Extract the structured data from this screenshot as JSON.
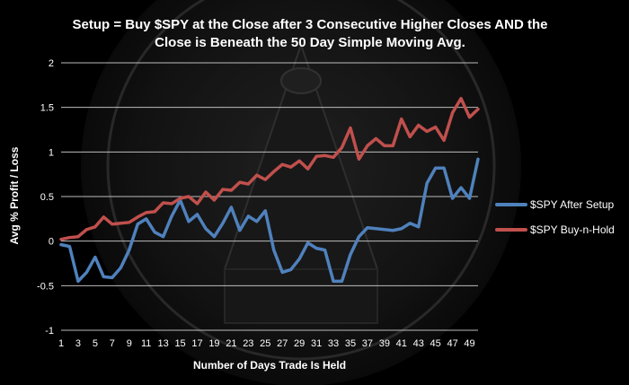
{
  "chart_data": {
    "type": "line",
    "title_line1": "Setup = Buy $SPY at the Close after 3 Consecutive Higher Closes AND the",
    "title_line2": "Close is Beneath the 50 Day Simple Moving Avg.",
    "xlabel": "Number of Days Trade Is Held",
    "ylabel": "Avg % Profit / Loss",
    "ylim": [
      -1,
      2
    ],
    "yticks": [
      -1,
      -0.5,
      0,
      0.5,
      1,
      1.5,
      2
    ],
    "ytick_labels": [
      "-1",
      "-0.5",
      "0",
      "0.5",
      "1",
      "1.5",
      "2"
    ],
    "xlim": [
      1,
      50
    ],
    "xtick_labels": [
      "1",
      "3",
      "5",
      "7",
      "9",
      "11",
      "13",
      "15",
      "17",
      "19",
      "21",
      "23",
      "25",
      "27",
      "29",
      "31",
      "33",
      "35",
      "37",
      "39",
      "41",
      "43",
      "45",
      "47",
      "49"
    ],
    "grid": "horizontal",
    "legend_position": "right",
    "x": [
      1,
      2,
      3,
      4,
      5,
      6,
      7,
      8,
      9,
      10,
      11,
      12,
      13,
      14,
      15,
      16,
      17,
      18,
      19,
      20,
      21,
      22,
      23,
      24,
      25,
      26,
      27,
      28,
      29,
      30,
      31,
      32,
      33,
      34,
      35,
      36,
      37,
      38,
      39,
      40,
      41,
      42,
      43,
      44,
      45,
      46,
      47,
      48,
      49,
      50
    ],
    "series": [
      {
        "name": "$SPY After Setup",
        "color": "#4f81bd",
        "values": [
          -0.04,
          -0.06,
          -0.45,
          -0.35,
          -0.18,
          -0.4,
          -0.41,
          -0.3,
          -0.1,
          0.19,
          0.25,
          0.1,
          0.05,
          0.28,
          0.46,
          0.22,
          0.3,
          0.14,
          0.05,
          0.2,
          0.38,
          0.12,
          0.28,
          0.22,
          0.34,
          -0.1,
          -0.35,
          -0.32,
          -0.2,
          -0.02,
          -0.08,
          -0.1,
          -0.45,
          -0.45,
          -0.15,
          0.05,
          0.15,
          0.14,
          0.13,
          0.12,
          0.14,
          0.2,
          0.16,
          0.65,
          0.82,
          0.82,
          0.48,
          0.6,
          0.48,
          0.92
        ]
      },
      {
        "name": "$SPY Buy-n-Hold",
        "color": "#c0504d",
        "values": [
          0.02,
          0.04,
          0.05,
          0.13,
          0.16,
          0.27,
          0.19,
          0.2,
          0.21,
          0.27,
          0.32,
          0.33,
          0.43,
          0.42,
          0.48,
          0.5,
          0.42,
          0.55,
          0.46,
          0.58,
          0.57,
          0.66,
          0.64,
          0.74,
          0.69,
          0.78,
          0.86,
          0.83,
          0.9,
          0.81,
          0.95,
          0.96,
          0.94,
          1.05,
          1.27,
          0.92,
          1.07,
          1.15,
          1.07,
          1.07,
          1.37,
          1.17,
          1.3,
          1.23,
          1.28,
          1.13,
          1.44,
          1.6,
          1.39,
          1.48
        ]
      }
    ]
  }
}
